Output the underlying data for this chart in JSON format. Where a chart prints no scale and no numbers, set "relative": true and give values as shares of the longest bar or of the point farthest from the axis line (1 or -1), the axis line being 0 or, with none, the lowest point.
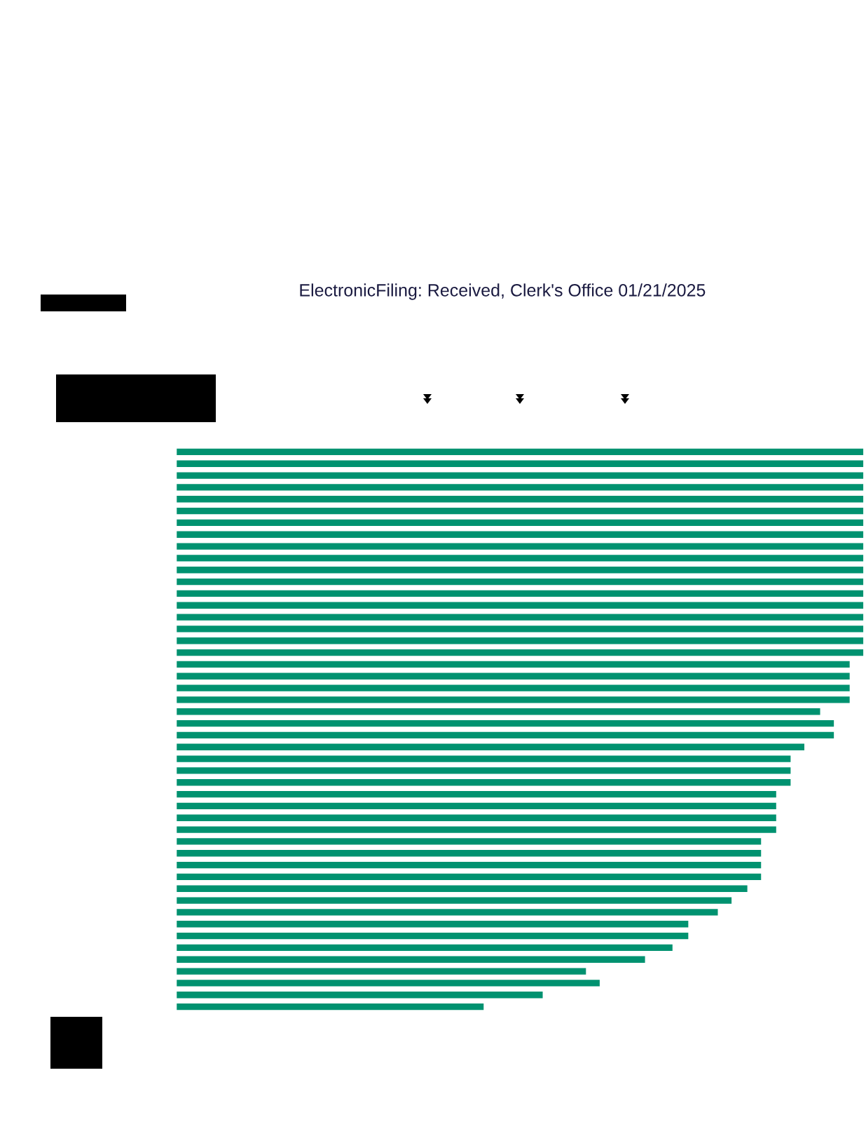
{
  "chart_data": {
    "type": "bar",
    "orientation": "horizontal",
    "relative": true,
    "title": "ElectronicFiling: Received, Clerk's Office 01/21/2025",
    "categories": [
      null,
      null,
      null,
      null,
      null,
      null,
      null,
      null,
      null,
      null,
      null,
      null,
      null,
      null,
      null,
      null,
      null,
      null,
      null,
      null,
      null,
      null,
      null,
      null,
      null,
      null,
      null,
      null,
      null,
      null,
      null,
      null,
      null,
      null,
      null,
      null,
      null,
      null,
      null,
      null,
      null,
      null,
      null,
      null,
      null,
      null,
      null,
      null
    ],
    "values": [
      1,
      1,
      1,
      1,
      1,
      1,
      1,
      1,
      1,
      1,
      1,
      1,
      1,
      1,
      1,
      1,
      1,
      1,
      0.98,
      0.98,
      0.98,
      0.98,
      0.937,
      0.957,
      0.957,
      0.914,
      0.894,
      0.894,
      0.894,
      0.873,
      0.873,
      0.873,
      0.873,
      0.851,
      0.851,
      0.851,
      0.851,
      0.831,
      0.808,
      0.788,
      0.745,
      0.745,
      0.722,
      0.682,
      0.596,
      0.616,
      0.533,
      0.447
    ],
    "color": "#009270"
  }
}
